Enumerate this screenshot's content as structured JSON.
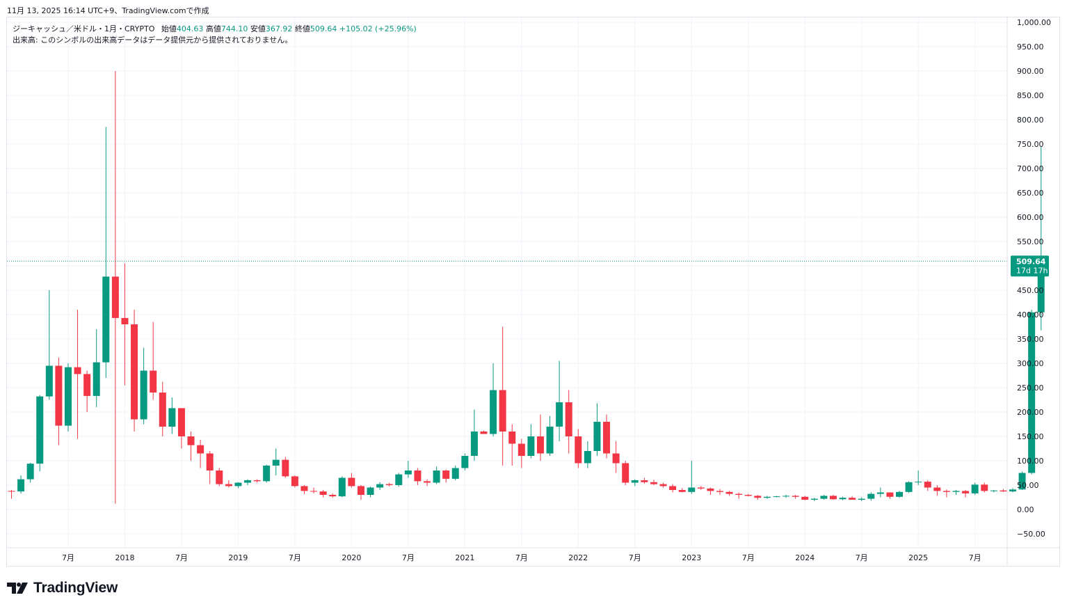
{
  "header": {
    "timestamp": "11月 13, 2025 16:14 UTC+9、TradingView.comで作成"
  },
  "legend": {
    "symbol": "ジーキャッシュ／米ドル・1月・CRYPTO",
    "open_label": "始値",
    "open": "404.63",
    "high_label": "高値",
    "high": "744.10",
    "low_label": "安値",
    "low": "367.92",
    "close_label": "終値",
    "close": "509.64",
    "change": "+105.02 (+25.96%)",
    "volume_note": "出来高: このシンボルの出来高データはデータ提供元から提供されておりません。"
  },
  "price_label": {
    "value": "509.64",
    "countdown": "17d 17h"
  },
  "footer": {
    "brand": "TradingView"
  },
  "colors": {
    "up": "#089981",
    "down": "#f23645",
    "grid": "#f0f3fa",
    "axis_text": "#131722"
  },
  "chart_data": {
    "type": "candlestick",
    "title": "ZEC/USD 1M",
    "ylim": [
      -70,
      1000
    ],
    "y_ticks": [
      -50,
      0,
      50,
      100,
      150,
      200,
      250,
      300,
      350,
      400,
      450,
      500,
      550,
      600,
      650,
      700,
      750,
      800,
      850,
      900,
      950,
      1000
    ],
    "y_tick_labels": [
      "−50.00",
      "0.00",
      "50.00",
      "100.00",
      "150.00",
      "200.00",
      "250.00",
      "300.00",
      "350.00",
      "400.00",
      "450.00",
      "500.00",
      "550.00",
      "600.00",
      "650.00",
      "700.00",
      "750.00",
      "800.00",
      "850.00",
      "900.00",
      "950.00",
      "1,000.00"
    ],
    "x_ticks": [
      {
        "label": "7月",
        "index": 6
      },
      {
        "label": "2018",
        "index": 12
      },
      {
        "label": "7月",
        "index": 18
      },
      {
        "label": "2019",
        "index": 24
      },
      {
        "label": "7月",
        "index": 30
      },
      {
        "label": "2020",
        "index": 36
      },
      {
        "label": "7月",
        "index": 42
      },
      {
        "label": "2021",
        "index": 48
      },
      {
        "label": "7月",
        "index": 54
      },
      {
        "label": "2022",
        "index": 60
      },
      {
        "label": "7月",
        "index": 66
      },
      {
        "label": "2023",
        "index": 72
      },
      {
        "label": "7月",
        "index": 78
      },
      {
        "label": "2024",
        "index": 84
      },
      {
        "label": "7月",
        "index": 90
      },
      {
        "label": "2025",
        "index": 96
      },
      {
        "label": "7月",
        "index": 102
      }
    ],
    "last_price": 509.64,
    "candles": [
      [
        38,
        40,
        22,
        37
      ],
      [
        37,
        70,
        33,
        62
      ],
      [
        62,
        96,
        55,
        94
      ],
      [
        94,
        235,
        78,
        232
      ],
      [
        232,
        450,
        225,
        295
      ],
      [
        295,
        312,
        132,
        172
      ],
      [
        172,
        300,
        160,
        292
      ],
      [
        292,
        410,
        145,
        278
      ],
      [
        278,
        285,
        200,
        233
      ],
      [
        233,
        370,
        210,
        302
      ],
      [
        302,
        785,
        270,
        478
      ],
      [
        478,
        900,
        12,
        393
      ],
      [
        393,
        505,
        255,
        380
      ],
      [
        380,
        410,
        160,
        185
      ],
      [
        185,
        332,
        175,
        285
      ],
      [
        285,
        385,
        225,
        240
      ],
      [
        240,
        262,
        150,
        170
      ],
      [
        170,
        230,
        155,
        208
      ],
      [
        208,
        208,
        125,
        150
      ],
      [
        150,
        160,
        100,
        132
      ],
      [
        132,
        143,
        85,
        115
      ],
      [
        115,
        120,
        52,
        80
      ],
      [
        80,
        85,
        48,
        52
      ],
      [
        52,
        60,
        45,
        48
      ],
      [
        48,
        56,
        44,
        55
      ],
      [
        55,
        62,
        50,
        60
      ],
      [
        60,
        62,
        55,
        58
      ],
      [
        58,
        92,
        55,
        90
      ],
      [
        90,
        125,
        70,
        102
      ],
      [
        102,
        108,
        65,
        68
      ],
      [
        68,
        70,
        45,
        48
      ],
      [
        48,
        50,
        32,
        38
      ],
      [
        38,
        45,
        33,
        37
      ],
      [
        37,
        40,
        25,
        30
      ],
      [
        30,
        33,
        24,
        27
      ],
      [
        27,
        68,
        25,
        65
      ],
      [
        65,
        75,
        45,
        48
      ],
      [
        48,
        50,
        20,
        30
      ],
      [
        30,
        47,
        25,
        45
      ],
      [
        45,
        56,
        40,
        52
      ],
      [
        52,
        55,
        47,
        50
      ],
      [
        50,
        75,
        47,
        72
      ],
      [
        72,
        100,
        65,
        80
      ],
      [
        80,
        85,
        50,
        58
      ],
      [
        58,
        62,
        48,
        55
      ],
      [
        55,
        88,
        52,
        80
      ],
      [
        80,
        82,
        55,
        63
      ],
      [
        63,
        90,
        60,
        85
      ],
      [
        85,
        115,
        80,
        110
      ],
      [
        110,
        205,
        100,
        160
      ],
      [
        160,
        162,
        155,
        155
      ],
      [
        155,
        300,
        150,
        245
      ],
      [
        245,
        375,
        90,
        160
      ],
      [
        160,
        175,
        90,
        135
      ],
      [
        135,
        145,
        85,
        110
      ],
      [
        110,
        175,
        105,
        150
      ],
      [
        150,
        195,
        100,
        115
      ],
      [
        115,
        192,
        110,
        170
      ],
      [
        170,
        305,
        140,
        220
      ],
      [
        220,
        245,
        115,
        150
      ],
      [
        150,
        165,
        85,
        95
      ],
      [
        95,
        140,
        85,
        120
      ],
      [
        120,
        218,
        110,
        180
      ],
      [
        180,
        195,
        105,
        115
      ],
      [
        115,
        140,
        75,
        95
      ],
      [
        95,
        100,
        50,
        55
      ],
      [
        55,
        62,
        48,
        60
      ],
      [
        60,
        65,
        53,
        56
      ],
      [
        56,
        61,
        50,
        52
      ],
      [
        52,
        55,
        45,
        48
      ],
      [
        48,
        52,
        35,
        40
      ],
      [
        40,
        44,
        35,
        36
      ],
      [
        36,
        100,
        32,
        45
      ],
      [
        45,
        48,
        40,
        43
      ],
      [
        43,
        45,
        30,
        38
      ],
      [
        38,
        42,
        30,
        36
      ],
      [
        36,
        38,
        28,
        32
      ],
      [
        32,
        35,
        22,
        30
      ],
      [
        30,
        32,
        27,
        28
      ],
      [
        28,
        30,
        20,
        24
      ],
      [
        24,
        28,
        22,
        26
      ],
      [
        26,
        28,
        25,
        27
      ],
      [
        27,
        30,
        24,
        28
      ],
      [
        28,
        30,
        22,
        26
      ],
      [
        26,
        28,
        19,
        20
      ],
      [
        20,
        24,
        17,
        22
      ],
      [
        22,
        30,
        20,
        28
      ],
      [
        28,
        30,
        20,
        21
      ],
      [
        21,
        26,
        19,
        24
      ],
      [
        24,
        27,
        20,
        20
      ],
      [
        20,
        25,
        17,
        22
      ],
      [
        22,
        35,
        18,
        32
      ],
      [
        32,
        45,
        25,
        35
      ],
      [
        35,
        35,
        22,
        26
      ],
      [
        26,
        38,
        24,
        36
      ],
      [
        36,
        58,
        34,
        56
      ],
      [
        56,
        80,
        50,
        57
      ],
      [
        57,
        60,
        38,
        45
      ],
      [
        45,
        50,
        28,
        38
      ],
      [
        38,
        41,
        25,
        36
      ],
      [
        36,
        40,
        30,
        38
      ],
      [
        38,
        40,
        25,
        33
      ],
      [
        33,
        55,
        30,
        51
      ],
      [
        51,
        55,
        35,
        38
      ],
      [
        38,
        40,
        35,
        39
      ],
      [
        39,
        42,
        36,
        37
      ],
      [
        37,
        44,
        35,
        41
      ],
      [
        41,
        78,
        40,
        75
      ],
      [
        75,
        410,
        72,
        404.63
      ],
      [
        404.63,
        744.1,
        367.92,
        509.64
      ]
    ]
  }
}
